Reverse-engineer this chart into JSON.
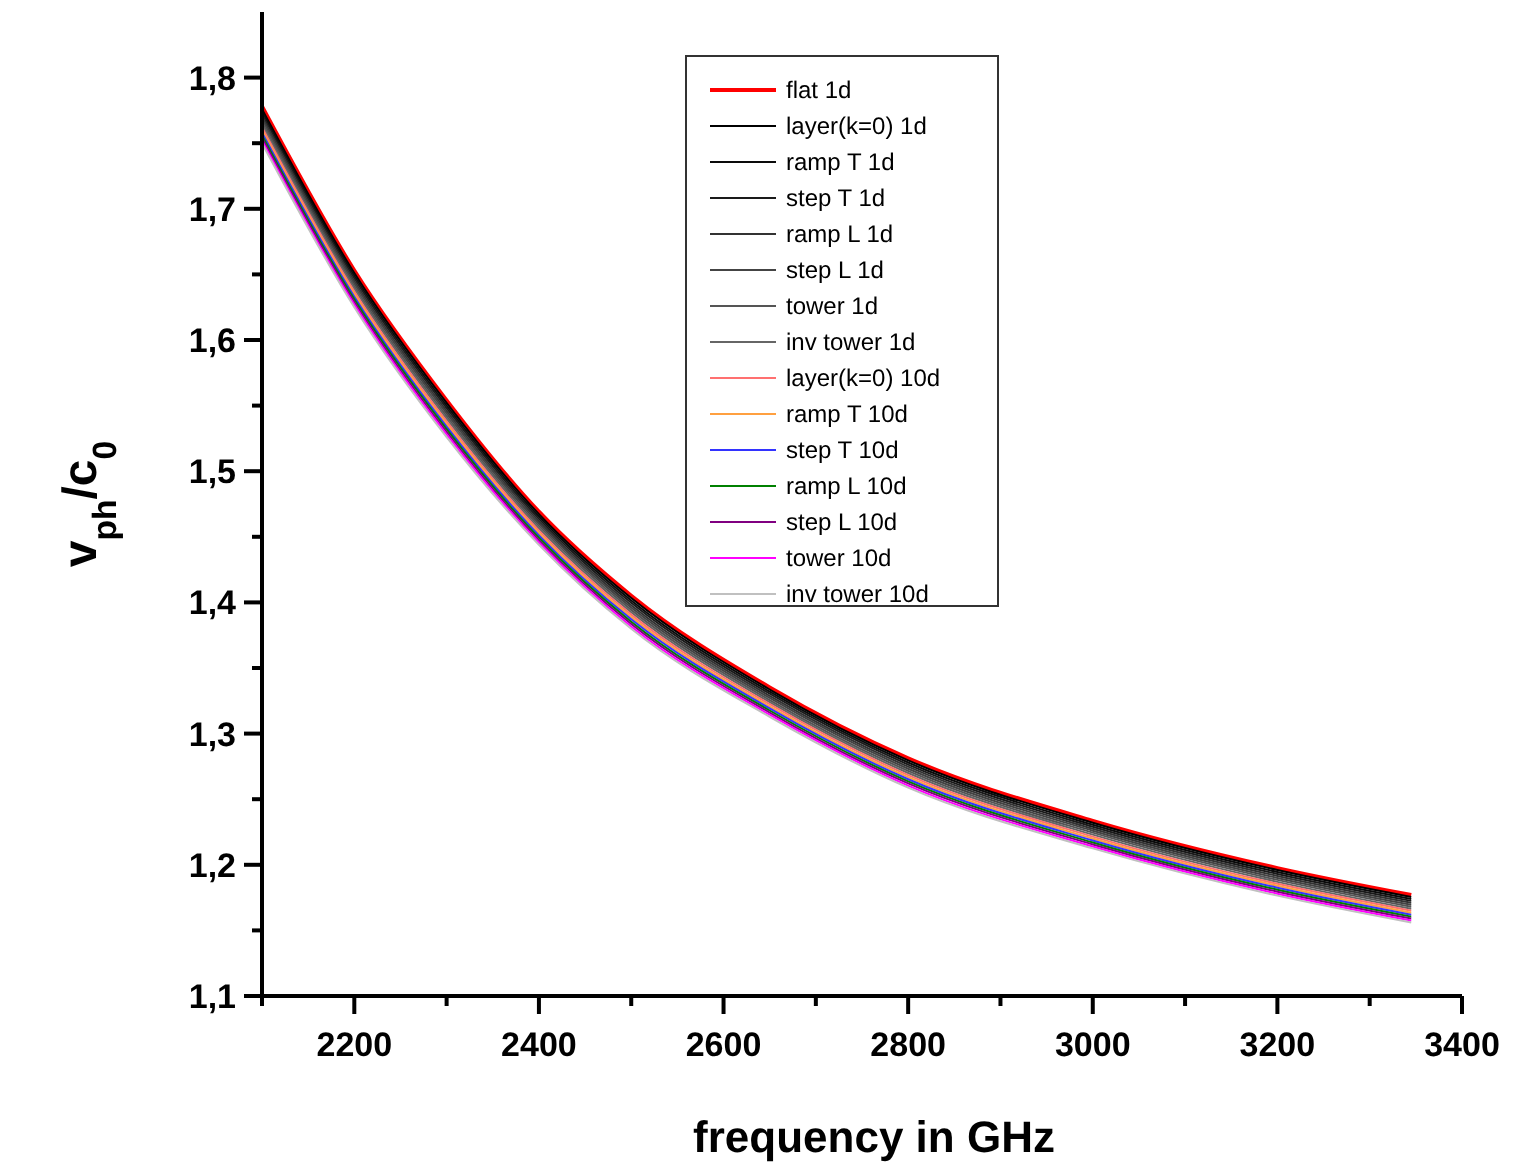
{
  "chart_data": {
    "type": "line",
    "xlabel": "frequency in GHz",
    "ylabel": "v$_{ph}$/c$_{0}$",
    "xlim": [
      2100,
      3400
    ],
    "xticks": [
      {
        "value": 2100,
        "label": null
      },
      2200,
      {
        "value": 2300,
        "label": null
      },
      2400,
      {
        "value": 2500,
        "label": null
      },
      2600,
      {
        "value": 2700,
        "label": null
      },
      2800,
      {
        "value": 2900,
        "label": null
      },
      3000,
      {
        "value": 3100,
        "label": null
      },
      3200,
      {
        "value": 3300,
        "label": null
      },
      3400
    ],
    "ylim": [
      1.1,
      1.85
    ],
    "yticks": [
      {
        "value": 1.1,
        "label": "1,1"
      },
      {
        "value": 1.15,
        "label": null
      },
      {
        "value": 1.2,
        "label": "1,2"
      },
      {
        "value": 1.25,
        "label": null
      },
      {
        "value": 1.3,
        "label": "1,3"
      },
      {
        "value": 1.35,
        "label": null
      },
      {
        "value": 1.4,
        "label": "1,4"
      },
      {
        "value": 1.45,
        "label": null
      },
      {
        "value": 1.5,
        "label": "1,5"
      },
      {
        "value": 1.55,
        "label": null
      },
      {
        "value": 1.6,
        "label": "1,6"
      },
      {
        "value": 1.65,
        "label": null
      },
      {
        "value": 1.7,
        "label": "1,7"
      },
      {
        "value": 1.75,
        "label": null
      },
      {
        "value": 1.8,
        "label": "1,8"
      }
    ],
    "x": [
      2100,
      2200,
      2300,
      2400,
      2500,
      2650,
      2800,
      3000,
      3200,
      3345
    ],
    "grid": false,
    "legend": "top",
    "line_style": "solid",
    "marker": "none",
    "series": [
      {
        "name": "flat 1d",
        "color": "#ff0000",
        "values": [
          1.778,
          1.653,
          1.554,
          1.4691,
          1.4051,
          1.3352,
          1.2812,
          1.2335,
          1.1975,
          1.177
        ]
      },
      {
        "name": "layer(k=0) 1d",
        "color": "#000000",
        "values": [
          1.776,
          1.651,
          1.552,
          1.4673,
          1.4033,
          1.3336,
          1.2796,
          1.232,
          1.196,
          1.1755
        ]
      },
      {
        "name": "ramp T 1d",
        "color": "#0a0a0a",
        "values": [
          1.774,
          1.649,
          1.55,
          1.4655,
          1.4015,
          1.332,
          1.278,
          1.2305,
          1.1945,
          1.174
        ]
      },
      {
        "name": "step T 1d",
        "color": "#1a1a1a",
        "values": [
          1.772,
          1.647,
          1.548,
          1.4637,
          1.3997,
          1.3304,
          1.2764,
          1.229,
          1.193,
          1.1725
        ]
      },
      {
        "name": "ramp L 1d",
        "color": "#333333",
        "values": [
          1.77,
          1.645,
          1.546,
          1.4619,
          1.3979,
          1.3288,
          1.2748,
          1.2275,
          1.1915,
          1.171
        ]
      },
      {
        "name": "step L 1d",
        "color": "#444444",
        "values": [
          1.768,
          1.643,
          1.544,
          1.4601,
          1.3961,
          1.3272,
          1.2732,
          1.226,
          1.19,
          1.1695
        ]
      },
      {
        "name": "tower 1d",
        "color": "#555555",
        "values": [
          1.766,
          1.641,
          1.542,
          1.4583,
          1.3943,
          1.3256,
          1.2716,
          1.2245,
          1.1885,
          1.168
        ]
      },
      {
        "name": "inv tower 1d",
        "color": "#666666",
        "values": [
          1.764,
          1.639,
          1.54,
          1.4565,
          1.3925,
          1.324,
          1.27,
          1.223,
          1.187,
          1.1665
        ]
      },
      {
        "name": "layer(k=0) 10d",
        "color": "#ff7070",
        "values": [
          1.762,
          1.637,
          1.538,
          1.4547,
          1.3907,
          1.3224,
          1.2684,
          1.2215,
          1.1855,
          1.165
        ]
      },
      {
        "name": "ramp T 10d",
        "color": "#ffa040",
        "values": [
          1.76,
          1.635,
          1.536,
          1.4529,
          1.3889,
          1.3208,
          1.2668,
          1.22,
          1.184,
          1.1635
        ]
      },
      {
        "name": "step T 10d",
        "color": "#3333ff",
        "values": [
          1.758,
          1.633,
          1.534,
          1.4511,
          1.3871,
          1.3192,
          1.2652,
          1.2185,
          1.1825,
          1.162
        ]
      },
      {
        "name": "ramp L 10d",
        "color": "#008000",
        "values": [
          1.756,
          1.631,
          1.532,
          1.4493,
          1.3853,
          1.3176,
          1.2636,
          1.217,
          1.181,
          1.1605
        ]
      },
      {
        "name": "step L 10d",
        "color": "#800080",
        "values": [
          1.754,
          1.629,
          1.53,
          1.4475,
          1.3835,
          1.316,
          1.262,
          1.2155,
          1.1795,
          1.159
        ]
      },
      {
        "name": "tower 10d",
        "color": "#ff00ff",
        "values": [
          1.752,
          1.627,
          1.528,
          1.4457,
          1.3817,
          1.3144,
          1.2604,
          1.214,
          1.178,
          1.1575
        ]
      },
      {
        "name": "inv tower 10d",
        "color": "#c0c0c0",
        "values": [
          1.75,
          1.625,
          1.526,
          1.4439,
          1.3799,
          1.3128,
          1.2588,
          1.2125,
          1.1765,
          1.156
        ]
      }
    ]
  }
}
